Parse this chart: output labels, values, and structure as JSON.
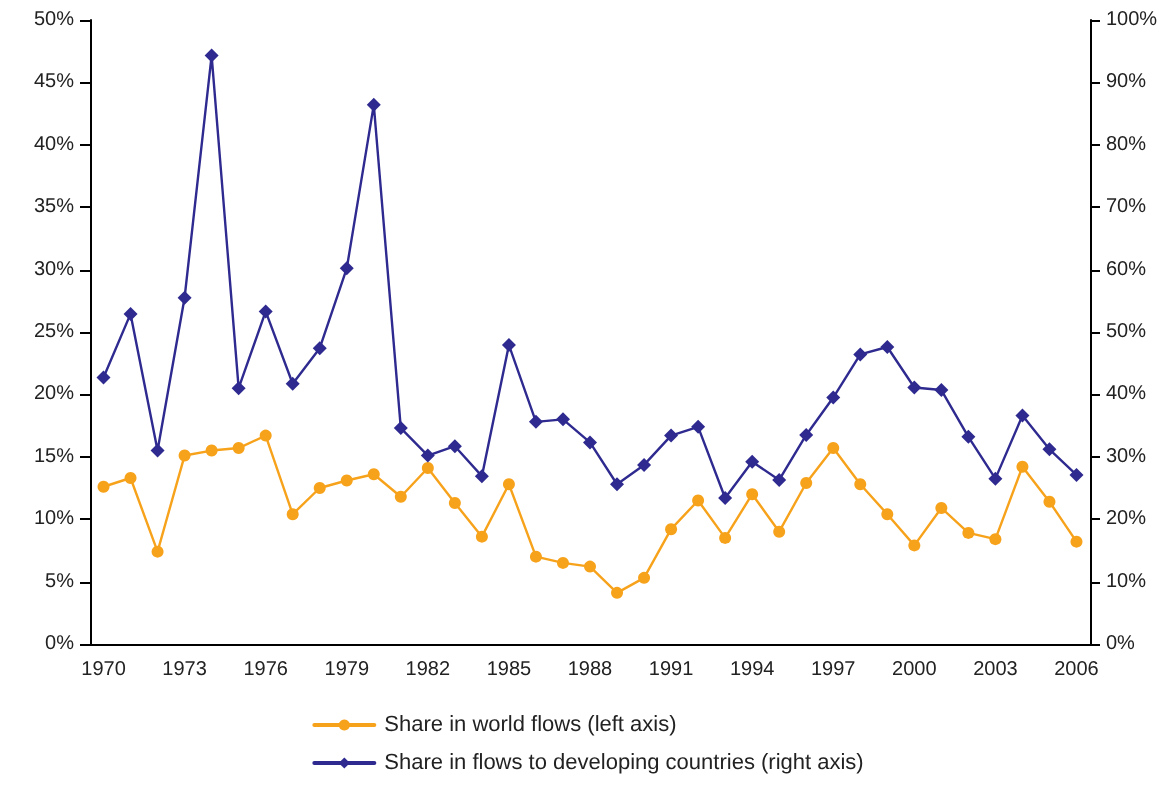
{
  "chart_data": {
    "type": "line",
    "categories": [
      "1970",
      null,
      null,
      "1973",
      null,
      null,
      "1976",
      null,
      null,
      "1979",
      null,
      null,
      "1982",
      null,
      null,
      "1985",
      null,
      null,
      "1988",
      null,
      null,
      "1991",
      null,
      null,
      "1994",
      null,
      null,
      "1997",
      null,
      null,
      "2000",
      null,
      null,
      "2003",
      null,
      null,
      "2006"
    ],
    "series": [
      {
        "name": "Share in world flows (left axis)",
        "color": "#f7a21b",
        "marker": "circle",
        "values": [
          12.6,
          13.3,
          7.4,
          15.1,
          15.5,
          15.7,
          16.7,
          10.4,
          12.5,
          13.1,
          13.6,
          11.8,
          14.1,
          11.3,
          8.6,
          12.8,
          7.0,
          6.5,
          6.2,
          4.1,
          5.3,
          9.2,
          11.5,
          8.5,
          12.0,
          9.0,
          12.9,
          15.7,
          12.8,
          10.4,
          7.9,
          10.9,
          8.9,
          8.4,
          14.2,
          11.4,
          8.2
        ]
      },
      {
        "name": "Share in flows to developing countries (right axis)",
        "color": "#2e2a8f",
        "marker": "diamond",
        "axis": "y2",
        "values": [
          42.7,
          52.9,
          31.0,
          55.5,
          94.3,
          41.0,
          53.3,
          41.7,
          47.4,
          60.2,
          86.4,
          34.6,
          30.2,
          31.7,
          26.9,
          47.9,
          35.6,
          36.0,
          32.3,
          25.6,
          28.7,
          33.4,
          34.8,
          23.4,
          29.2,
          26.3,
          33.5,
          39.5,
          46.4,
          47.6,
          41.1,
          40.7,
          33.2,
          26.5,
          36.6,
          31.2,
          27.1
        ]
      }
    ],
    "ylim": [
      0,
      50
    ],
    "yticks": [
      {
        "value": 0,
        "label": "0%"
      },
      {
        "value": 5,
        "label": "5%"
      },
      {
        "value": 10,
        "label": "10%"
      },
      {
        "value": 15,
        "label": "15%"
      },
      {
        "value": 20,
        "label": "20%"
      },
      {
        "value": 25,
        "label": "25%"
      },
      {
        "value": 30,
        "label": "30%"
      },
      {
        "value": 35,
        "label": "35%"
      },
      {
        "value": 40,
        "label": "40%"
      },
      {
        "value": 45,
        "label": "45%"
      },
      {
        "value": 50,
        "label": "50%"
      }
    ],
    "y2lim": [
      0,
      100
    ],
    "y2ticks": [
      {
        "value": 0,
        "label": "0%"
      },
      {
        "value": 10,
        "label": "10%"
      },
      {
        "value": 20,
        "label": "20%"
      },
      {
        "value": 30,
        "label": "30%"
      },
      {
        "value": 40,
        "label": "40%"
      },
      {
        "value": 50,
        "label": "50%"
      },
      {
        "value": 60,
        "label": "60%"
      },
      {
        "value": 70,
        "label": "70%"
      },
      {
        "value": 80,
        "label": "80%"
      },
      {
        "value": 90,
        "label": "90%"
      },
      {
        "value": 100,
        "label": "100%"
      }
    ],
    "grid": false,
    "legend": "bottom"
  }
}
